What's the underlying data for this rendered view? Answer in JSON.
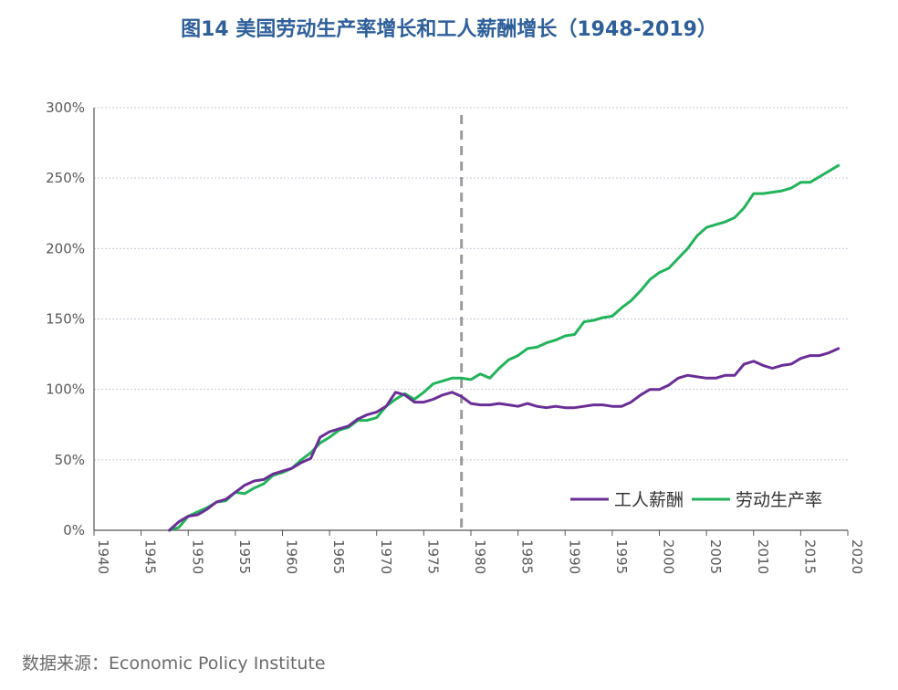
{
  "title": "图14  美国劳动生产率增长和工人薪酬增长（1948-2019）",
  "source": "数据来源：Economic Policy Institute",
  "colors": {
    "wages": "#6a2e96",
    "productivity": "#22b35b",
    "divider": "#9c9c9c",
    "grid": "#c9c9d9",
    "axis": "#555555",
    "tick": "#595959"
  },
  "chart_data": {
    "type": "line",
    "title": "图14  美国劳动生产率增长和工人薪酬增长（1948-2019）",
    "xlim": [
      1940,
      2020
    ],
    "ylim": [
      0,
      300
    ],
    "x_ticks": [
      "1940",
      "1945",
      "1950",
      "1955",
      "1960",
      "1965",
      "1970",
      "1975",
      "1980",
      "1985",
      "1990",
      "1995",
      "2000",
      "2005",
      "2010",
      "2015",
      "2020"
    ],
    "y_ticks": [
      "0%",
      "50%",
      "100%",
      "150%",
      "200%",
      "250%",
      "300%"
    ],
    "y_tick_values": [
      0,
      50,
      100,
      150,
      200,
      250,
      300
    ],
    "grid": "horizontal dotted",
    "legend_position": "bottom-right",
    "reference_line": {
      "x": 1979,
      "style": "dashed"
    },
    "series": [
      {
        "name": "工人薪酬",
        "color": "#6a2e96",
        "x": [
          1948,
          1949,
          1950,
          1951,
          1952,
          1953,
          1954,
          1955,
          1956,
          1957,
          1958,
          1959,
          1960,
          1961,
          1962,
          1963,
          1964,
          1965,
          1966,
          1967,
          1968,
          1969,
          1970,
          1971,
          1972,
          1973,
          1974,
          1975,
          1976,
          1977,
          1978,
          1979,
          1980,
          1981,
          1982,
          1983,
          1984,
          1985,
          1986,
          1987,
          1988,
          1989,
          1990,
          1991,
          1992,
          1993,
          1994,
          1995,
          1996,
          1997,
          1998,
          1999,
          2000,
          2001,
          2002,
          2003,
          2004,
          2005,
          2006,
          2007,
          2008,
          2009,
          2010,
          2011,
          2012,
          2013,
          2014,
          2015,
          2016,
          2017,
          2018,
          2019
        ],
        "y": [
          0,
          6,
          10,
          11,
          15,
          20,
          22,
          27,
          32,
          35,
          36,
          40,
          42,
          44,
          48,
          51,
          66,
          70,
          72,
          74,
          79,
          82,
          84,
          88,
          98,
          96,
          91,
          91,
          93,
          96,
          98,
          95,
          90,
          89,
          89,
          90,
          89,
          88,
          90,
          88,
          87,
          88,
          87,
          87,
          88,
          89,
          89,
          88,
          88,
          91,
          96,
          100,
          100,
          103,
          108,
          110,
          109,
          108,
          108,
          110,
          110,
          118,
          120,
          117,
          115,
          117,
          118,
          122,
          124,
          124,
          126,
          129
        ]
      },
      {
        "name": "劳动生产率",
        "color": "#22b35b",
        "x": [
          1948,
          1949,
          1950,
          1951,
          1952,
          1953,
          1954,
          1955,
          1956,
          1957,
          1958,
          1959,
          1960,
          1961,
          1962,
          1963,
          1964,
          1965,
          1966,
          1967,
          1968,
          1969,
          1970,
          1971,
          1972,
          1973,
          1974,
          1975,
          1976,
          1977,
          1978,
          1979,
          1980,
          1981,
          1982,
          1983,
          1984,
          1985,
          1986,
          1987,
          1988,
          1989,
          1990,
          1991,
          1992,
          1993,
          1994,
          1995,
          1996,
          1997,
          1998,
          1999,
          2000,
          2001,
          2002,
          2003,
          2004,
          2005,
          2006,
          2007,
          2008,
          2009,
          2010,
          2011,
          2012,
          2013,
          2014,
          2015,
          2016,
          2017,
          2018,
          2019
        ],
        "y": [
          0,
          2,
          10,
          13,
          16,
          20,
          21,
          27,
          26,
          30,
          33,
          39,
          41,
          44,
          50,
          55,
          62,
          66,
          71,
          73,
          78,
          78,
          80,
          88,
          93,
          97,
          93,
          98,
          104,
          106,
          108,
          108,
          107,
          111,
          108,
          115,
          121,
          124,
          129,
          130,
          133,
          135,
          138,
          139,
          148,
          149,
          151,
          152,
          158,
          163,
          170,
          178,
          183,
          186,
          193,
          200,
          209,
          215,
          217,
          219,
          222,
          229,
          239,
          239,
          240,
          241,
          243,
          247,
          247,
          251,
          255,
          259
        ]
      }
    ]
  }
}
